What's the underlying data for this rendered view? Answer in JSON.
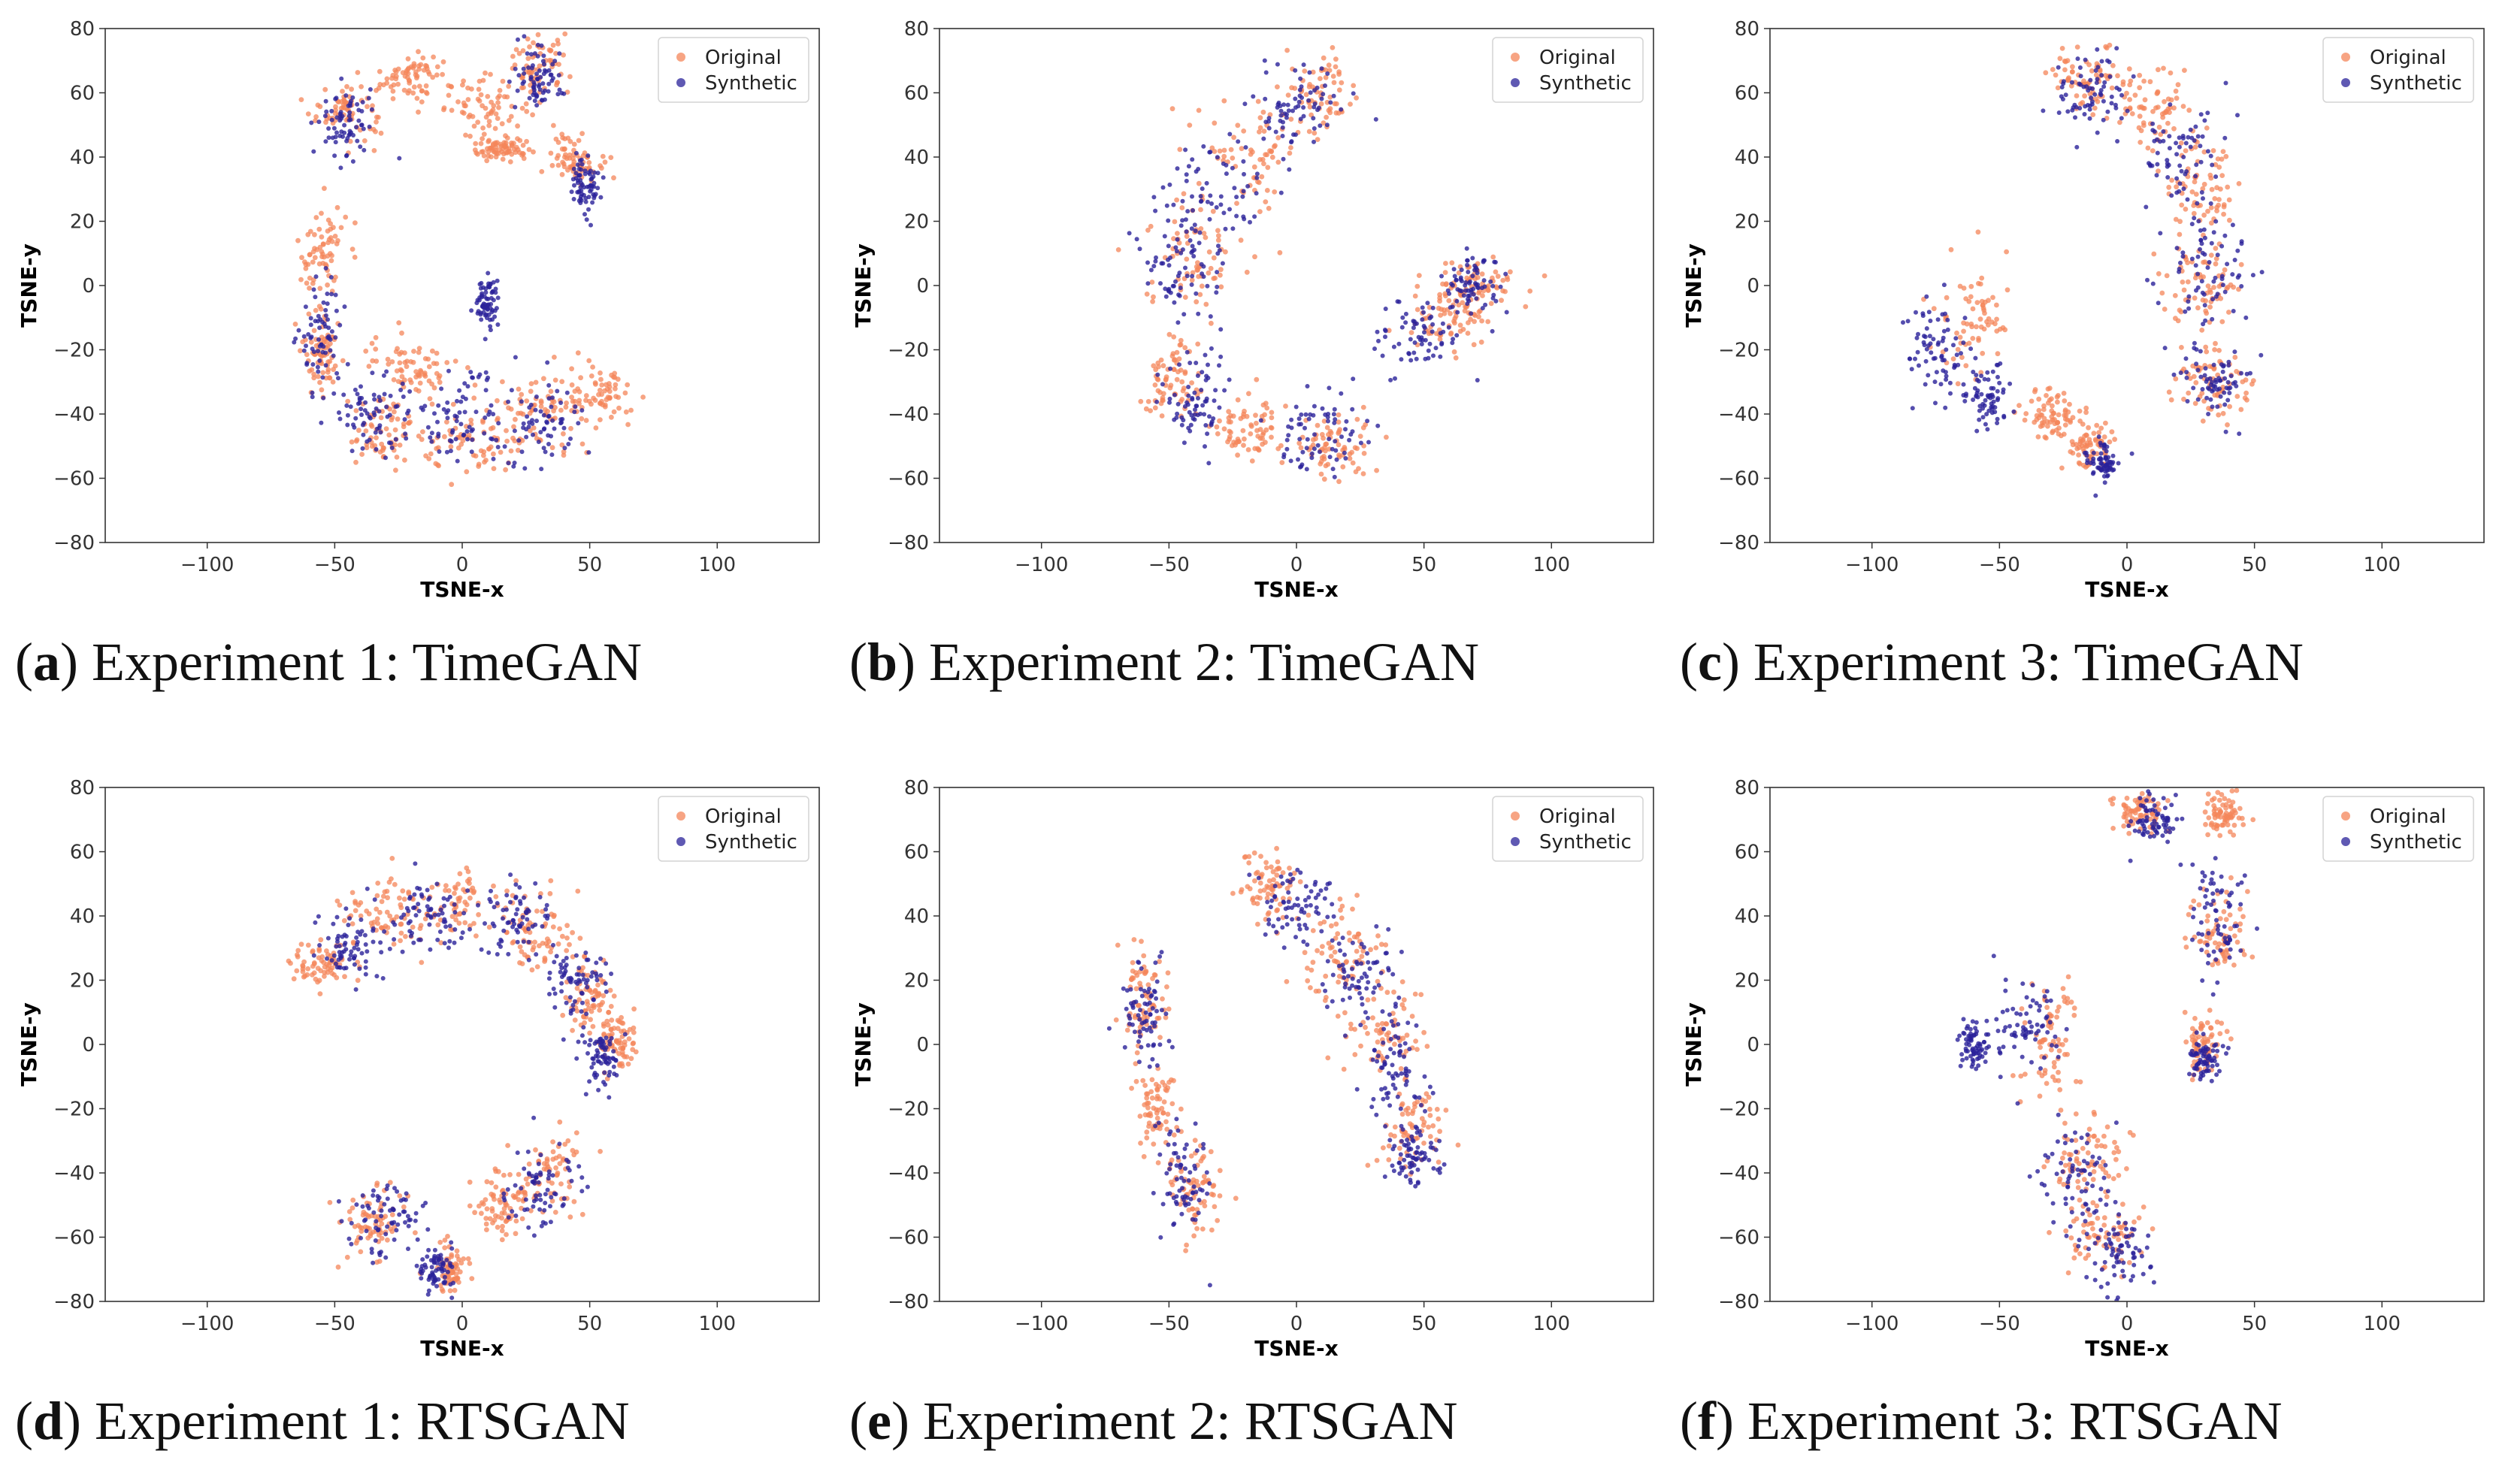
{
  "colors": {
    "original": "#f4865a",
    "synthetic": "#2a229a",
    "frame": "#333333"
  },
  "chart_data": [
    {
      "type": "scatter",
      "id": "a",
      "caption_letter": "a",
      "caption_text": "Experiment 1: TimeGAN",
      "xlabel": "TSNE-x",
      "ylabel": "TSNE-y",
      "xlim": [
        -140,
        140
      ],
      "ylim": [
        -80,
        80
      ],
      "xticks": [
        "−100",
        "−50",
        "0",
        "50",
        "100"
      ],
      "xtick_values": [
        -100,
        -50,
        0,
        50,
        100
      ],
      "yticks": [
        "−80",
        "−60",
        "−40",
        "−20",
        "0",
        "20",
        "40",
        "60",
        "80"
      ],
      "ytick_values": [
        -80,
        -60,
        -40,
        -20,
        0,
        20,
        40,
        60,
        80
      ],
      "legend": [
        "Original",
        "Synthetic"
      ],
      "legend_position": "top-right",
      "series": [
        {
          "name": "Original",
          "clusters": [
            [
              -45,
              55,
              12,
              8
            ],
            [
              -20,
              65,
              10,
              6
            ],
            [
              10,
              55,
              14,
              8
            ],
            [
              30,
              68,
              10,
              8
            ],
            [
              45,
              40,
              8,
              6
            ],
            [
              15,
              42,
              10,
              3
            ],
            [
              -55,
              10,
              8,
              14
            ],
            [
              -55,
              -20,
              6,
              10
            ],
            [
              -20,
              -25,
              14,
              8
            ],
            [
              -30,
              -45,
              14,
              10
            ],
            [
              5,
              -50,
              16,
              10
            ],
            [
              30,
              -40,
              14,
              10
            ],
            [
              55,
              -35,
              10,
              8
            ]
          ]
        },
        {
          "name": "Synthetic",
          "clusters": [
            [
              -45,
              50,
              10,
              10
            ],
            [
              30,
              65,
              8,
              8
            ],
            [
              48,
              32,
              5,
              8
            ],
            [
              -55,
              -15,
              8,
              15
            ],
            [
              -35,
              -40,
              14,
              10
            ],
            [
              0,
              -42,
              15,
              12
            ],
            [
              30,
              -42,
              14,
              10
            ],
            [
              10,
              -5,
              4,
              6
            ]
          ]
        }
      ]
    },
    {
      "type": "scatter",
      "id": "b",
      "caption_letter": "b",
      "caption_text": "Experiment 2: TimeGAN",
      "xlabel": "TSNE-x",
      "ylabel": "TSNE-y",
      "xlim": [
        -140,
        140
      ],
      "ylim": [
        -80,
        80
      ],
      "xticks": [
        "−100",
        "−50",
        "0",
        "50",
        "100"
      ],
      "xtick_values": [
        -100,
        -50,
        0,
        50,
        100
      ],
      "yticks": [
        "−80",
        "−60",
        "−40",
        "−20",
        "0",
        "20",
        "40",
        "60",
        "80"
      ],
      "ytick_values": [
        -80,
        -60,
        -40,
        -20,
        0,
        20,
        40,
        60,
        80
      ],
      "legend": [
        "Original",
        "Synthetic"
      ],
      "legend_position": "top-right",
      "series": [
        {
          "name": "Original",
          "clusters": [
            [
              10,
              60,
              12,
              10
            ],
            [
              -20,
              40,
              18,
              14
            ],
            [
              -40,
              10,
              16,
              14
            ],
            [
              -50,
              -30,
              10,
              12
            ],
            [
              -20,
              -45,
              12,
              8
            ],
            [
              15,
              -50,
              14,
              8
            ],
            [
              60,
              -10,
              14,
              10
            ],
            [
              70,
              0,
              12,
              8
            ]
          ]
        },
        {
          "name": "Synthetic",
          "clusters": [
            [
              0,
              55,
              14,
              10
            ],
            [
              -30,
              30,
              20,
              14
            ],
            [
              -45,
              5,
              14,
              14
            ],
            [
              -40,
              -35,
              10,
              12
            ],
            [
              10,
              -45,
              16,
              10
            ],
            [
              50,
              -15,
              14,
              10
            ],
            [
              70,
              0,
              10,
              8
            ]
          ]
        }
      ]
    },
    {
      "type": "scatter",
      "id": "c",
      "caption_letter": "c",
      "caption_text": "Experiment 3: TimeGAN",
      "xlabel": "TSNE-x",
      "ylabel": "TSNE-y",
      "xlim": [
        -140,
        140
      ],
      "ylim": [
        -80,
        80
      ],
      "xticks": [
        "−100",
        "−50",
        "0",
        "50",
        "100"
      ],
      "xtick_values": [
        -100,
        -50,
        0,
        50,
        100
      ],
      "yticks": [
        "−80",
        "−60",
        "−40",
        "−20",
        "0",
        "20",
        "40",
        "60",
        "80"
      ],
      "ytick_values": [
        -80,
        -60,
        -40,
        -20,
        0,
        20,
        40,
        60,
        80
      ],
      "legend": [
        "Original",
        "Synthetic"
      ],
      "legend_position": "top-right",
      "series": [
        {
          "name": "Original",
          "clusters": [
            [
              -15,
              65,
              12,
              8
            ],
            [
              10,
              55,
              14,
              10
            ],
            [
              30,
              30,
              12,
              14
            ],
            [
              30,
              0,
              12,
              12
            ],
            [
              35,
              -30,
              14,
              10
            ],
            [
              -60,
              -10,
              12,
              14
            ],
            [
              -30,
              -40,
              8,
              6
            ],
            [
              -15,
              -50,
              8,
              6
            ]
          ]
        },
        {
          "name": "Synthetic",
          "clusters": [
            [
              -15,
              60,
              12,
              10
            ],
            [
              20,
              40,
              14,
              14
            ],
            [
              30,
              5,
              14,
              14
            ],
            [
              35,
              -30,
              12,
              10
            ],
            [
              -75,
              -20,
              10,
              12
            ],
            [
              -55,
              -35,
              8,
              8
            ],
            [
              -10,
              -55,
              6,
              6
            ]
          ]
        }
      ]
    },
    {
      "type": "scatter",
      "id": "d",
      "caption_letter": "d",
      "caption_text": "Experiment 1: RTSGAN",
      "xlabel": "TSNE-x",
      "ylabel": "TSNE-y",
      "xlim": [
        -140,
        140
      ],
      "ylim": [
        -80,
        80
      ],
      "xticks": [
        "−100",
        "−50",
        "0",
        "50",
        "100"
      ],
      "xtick_values": [
        -100,
        -50,
        0,
        50,
        100
      ],
      "yticks": [
        "−80",
        "−60",
        "−40",
        "−20",
        "0",
        "20",
        "40",
        "60",
        "80"
      ],
      "ytick_values": [
        -80,
        -60,
        -40,
        -20,
        0,
        20,
        40,
        60,
        80
      ],
      "legend": [
        "Original",
        "Synthetic"
      ],
      "legend_position": "top-right",
      "series": [
        {
          "name": "Original",
          "clusters": [
            [
              -55,
              25,
              10,
              6
            ],
            [
              -30,
              40,
              16,
              10
            ],
            [
              0,
              45,
              16,
              10
            ],
            [
              30,
              35,
              14,
              10
            ],
            [
              50,
              15,
              8,
              10
            ],
            [
              60,
              0,
              6,
              8
            ],
            [
              -35,
              -55,
              12,
              10
            ],
            [
              15,
              -50,
              10,
              8
            ],
            [
              35,
              -40,
              12,
              10
            ],
            [
              -5,
              -70,
              6,
              6
            ]
          ]
        },
        {
          "name": "Synthetic",
          "clusters": [
            [
              -45,
              30,
              12,
              8
            ],
            [
              -15,
              40,
              16,
              10
            ],
            [
              20,
              40,
              14,
              10
            ],
            [
              45,
              20,
              10,
              10
            ],
            [
              55,
              -5,
              6,
              10
            ],
            [
              -30,
              -55,
              14,
              10
            ],
            [
              30,
              -45,
              14,
              10
            ],
            [
              -10,
              -70,
              6,
              6
            ]
          ]
        }
      ]
    },
    {
      "type": "scatter",
      "id": "e",
      "caption_letter": "e",
      "caption_text": "Experiment 2: RTSGAN",
      "xlabel": "TSNE-x",
      "ylabel": "TSNE-y",
      "xlim": [
        -140,
        140
      ],
      "ylim": [
        -80,
        80
      ],
      "xticks": [
        "−100",
        "−50",
        "0",
        "50",
        "100"
      ],
      "xtick_values": [
        -100,
        -50,
        0,
        50,
        100
      ],
      "yticks": [
        "−80",
        "−60",
        "−40",
        "−20",
        "0",
        "20",
        "40",
        "60",
        "80"
      ],
      "ytick_values": [
        -80,
        -60,
        -40,
        -20,
        0,
        20,
        40,
        60,
        80
      ],
      "legend": [
        "Original",
        "Synthetic"
      ],
      "legend_position": "top-right",
      "series": [
        {
          "name": "Original",
          "clusters": [
            [
              -60,
              15,
              8,
              14
            ],
            [
              -55,
              -20,
              6,
              10
            ],
            [
              -40,
              -45,
              8,
              12
            ],
            [
              -10,
              50,
              10,
              10
            ],
            [
              15,
              30,
              14,
              12
            ],
            [
              35,
              5,
              14,
              12
            ],
            [
              45,
              -25,
              10,
              12
            ]
          ]
        },
        {
          "name": "Synthetic",
          "clusters": [
            [
              -60,
              10,
              8,
              14
            ],
            [
              -45,
              -40,
              10,
              14
            ],
            [
              0,
              45,
              12,
              10
            ],
            [
              25,
              20,
              14,
              12
            ],
            [
              40,
              -10,
              12,
              14
            ],
            [
              45,
              -35,
              8,
              8
            ]
          ]
        }
      ]
    },
    {
      "type": "scatter",
      "id": "f",
      "caption_letter": "f",
      "caption_text": "Experiment 3: RTSGAN",
      "xlabel": "TSNE-x",
      "ylabel": "TSNE-y",
      "xlim": [
        -140,
        140
      ],
      "ylim": [
        -80,
        80
      ],
      "xticks": [
        "−100",
        "−50",
        "0",
        "50",
        "100"
      ],
      "xtick_values": [
        -100,
        -50,
        0,
        50,
        100
      ],
      "yticks": [
        "−80",
        "−60",
        "−40",
        "−20",
        "0",
        "20",
        "40",
        "60",
        "80"
      ],
      "ytick_values": [
        -80,
        -60,
        -40,
        -20,
        0,
        20,
        40,
        60,
        80
      ],
      "legend": [
        "Original",
        "Synthetic"
      ],
      "legend_position": "top-right",
      "series": [
        {
          "name": "Original",
          "clusters": [
            [
              5,
              72,
              8,
              6
            ],
            [
              38,
              72,
              6,
              6
            ],
            [
              35,
              35,
              10,
              12
            ],
            [
              30,
              0,
              6,
              8
            ],
            [
              -30,
              0,
              10,
              14
            ],
            [
              -15,
              -35,
              12,
              12
            ],
            [
              -10,
              -60,
              14,
              10
            ]
          ]
        },
        {
          "name": "Synthetic",
          "clusters": [
            [
              10,
              70,
              8,
              6
            ],
            [
              35,
              40,
              10,
              14
            ],
            [
              30,
              -5,
              6,
              6
            ],
            [
              -40,
              5,
              12,
              12
            ],
            [
              -60,
              0,
              5,
              6
            ],
            [
              -20,
              -40,
              12,
              14
            ],
            [
              -5,
              -65,
              12,
              10
            ]
          ]
        }
      ]
    }
  ]
}
